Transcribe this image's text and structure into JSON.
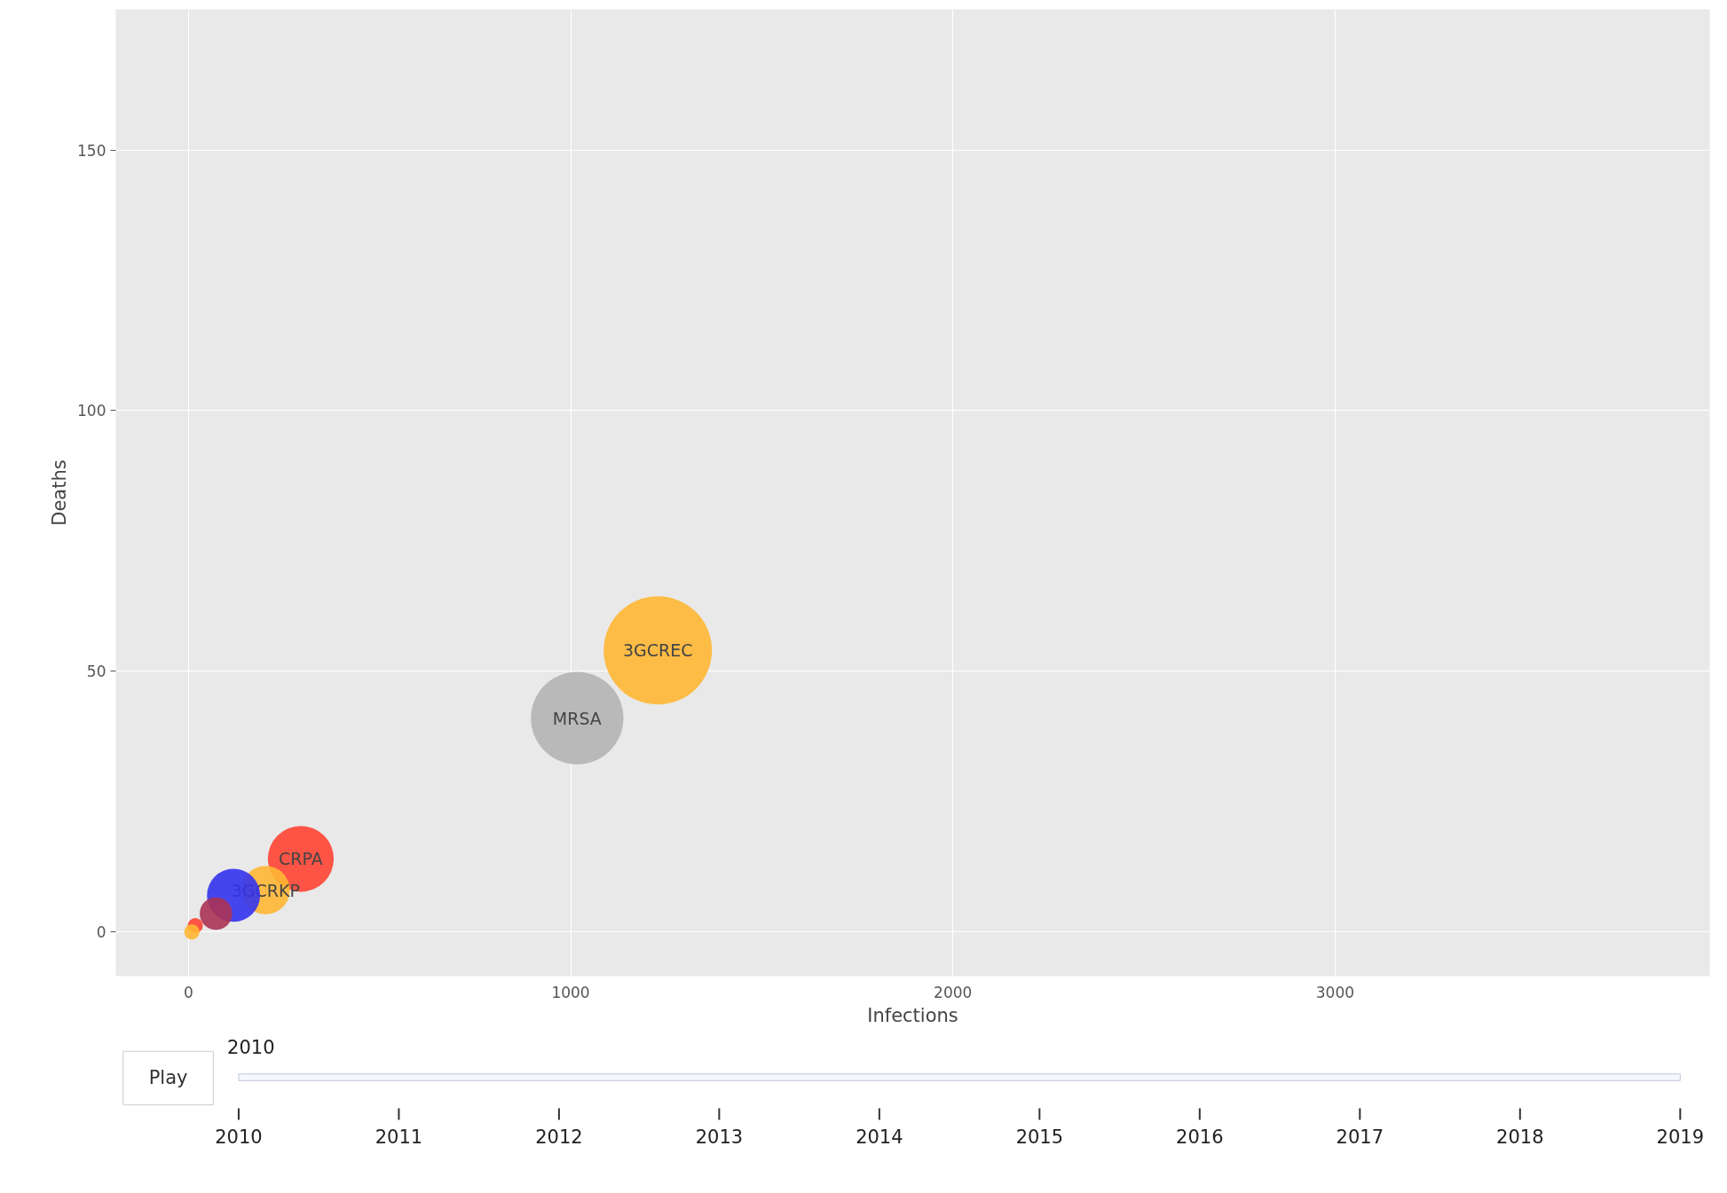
{
  "chart_data": {
    "type": "bubble",
    "xlabel": "Infections",
    "ylabel": "Deaths",
    "xlim": [
      -190,
      3980
    ],
    "ylim": [
      -8.5,
      177
    ],
    "xticks": [
      0,
      1000,
      2000,
      3000
    ],
    "yticks": [
      0,
      50,
      100,
      150
    ],
    "grid": true,
    "series": [
      {
        "name": "3GCREC",
        "color": "#ffb733",
        "x": [
          1228
        ],
        "values": [
          54
        ],
        "sizes": [
          1
        ]
      },
      {
        "name": "MRSA",
        "color": "#b4b4b4",
        "x": [
          1017
        ],
        "values": [
          41
        ],
        "sizes": [
          0.73
        ]
      },
      {
        "name": "CRPA",
        "color": "#ff4433",
        "x": [
          294
        ],
        "values": [
          14
        ],
        "sizes": [
          0.37
        ]
      },
      {
        "name": "3GCRKP",
        "color": "#ffb733",
        "x": [
          202
        ],
        "values": [
          8
        ],
        "sizes": [
          0.2
        ]
      },
      {
        "name": null,
        "color": "#3333ee",
        "x": [
          118
        ],
        "values": [
          7
        ],
        "sizes": [
          0.24
        ]
      },
      {
        "name": null,
        "color": "#aa3355",
        "x": [
          72
        ],
        "values": [
          3.5
        ],
        "sizes": [
          0.09
        ]
      },
      {
        "name": null,
        "color": "#ff4433",
        "x": [
          18
        ],
        "values": [
          1.2
        ],
        "sizes": [
          0.02
        ]
      },
      {
        "name": null,
        "color": "#ffb733",
        "x": [
          9
        ],
        "values": [
          0
        ],
        "sizes": [
          0.02
        ]
      }
    ],
    "annotations": [
      "Play",
      "2010",
      "2010",
      "2011",
      "2012",
      "2013",
      "2014",
      "2015",
      "2016",
      "2017",
      "2018",
      "2019"
    ]
  }
}
